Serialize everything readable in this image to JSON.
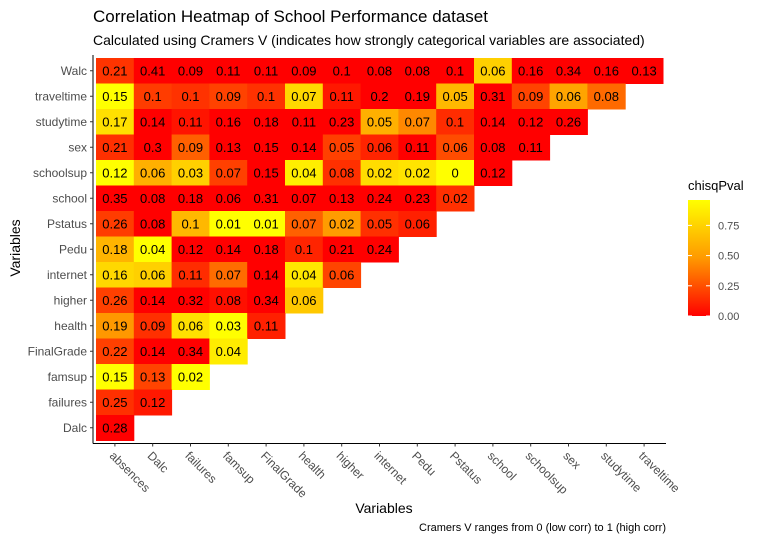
{
  "chart_data": {
    "type": "heatmap",
    "title": "Correlation Heatmap of School Performance dataset",
    "subtitle": "Calculated using Cramers V (indicates how strongly categorical variables are associated)",
    "xlabel": "Variables",
    "ylabel": "Variables",
    "caption": "Cramers V ranges from 0 (low corr) to 1 (high corr)",
    "x_categories": [
      "absences",
      "Dalc",
      "failures",
      "famsup",
      "FinalGrade",
      "health",
      "higher",
      "internet",
      "Pedu",
      "Pstatus",
      "school",
      "schoolsup",
      "sex",
      "studytime",
      "traveltime"
    ],
    "y_categories": [
      "Walc",
      "traveltime",
      "studytime",
      "sex",
      "schoolsup",
      "school",
      "Pstatus",
      "Pedu",
      "internet",
      "higher",
      "health",
      "FinalGrade",
      "famsup",
      "failures",
      "Dalc"
    ],
    "cells": [
      {
        "x": "absences",
        "y": "Walc",
        "label": "0.21",
        "fill": "#ff3400"
      },
      {
        "x": "Dalc",
        "y": "Walc",
        "label": "0.41",
        "fill": "#ff0000"
      },
      {
        "x": "failures",
        "y": "Walc",
        "label": "0.09",
        "fill": "#ff0000"
      },
      {
        "x": "famsup",
        "y": "Walc",
        "label": "0.11",
        "fill": "#ff0000"
      },
      {
        "x": "FinalGrade",
        "y": "Walc",
        "label": "0.11",
        "fill": "#ff0000"
      },
      {
        "x": "health",
        "y": "Walc",
        "label": "0.09",
        "fill": "#ff0000"
      },
      {
        "x": "higher",
        "y": "Walc",
        "label": "0.1",
        "fill": "#ff0000"
      },
      {
        "x": "internet",
        "y": "Walc",
        "label": "0.08",
        "fill": "#ff0000"
      },
      {
        "x": "Pedu",
        "y": "Walc",
        "label": "0.08",
        "fill": "#ff0000"
      },
      {
        "x": "Pstatus",
        "y": "Walc",
        "label": "0.1",
        "fill": "#ff0000"
      },
      {
        "x": "school",
        "y": "Walc",
        "label": "0.06",
        "fill": "#ffd000"
      },
      {
        "x": "schoolsup",
        "y": "Walc",
        "label": "0.16",
        "fill": "#ff0000"
      },
      {
        "x": "sex",
        "y": "Walc",
        "label": "0.34",
        "fill": "#ff0000"
      },
      {
        "x": "studytime",
        "y": "Walc",
        "label": "0.16",
        "fill": "#ff0000"
      },
      {
        "x": "traveltime",
        "y": "Walc",
        "label": "0.13",
        "fill": "#ff0000"
      },
      {
        "x": "absences",
        "y": "traveltime",
        "label": "0.15",
        "fill": "#ffff00"
      },
      {
        "x": "Dalc",
        "y": "traveltime",
        "label": "0.1",
        "fill": "#ff3c00"
      },
      {
        "x": "failures",
        "y": "traveltime",
        "label": "0.1",
        "fill": "#ff3200"
      },
      {
        "x": "famsup",
        "y": "traveltime",
        "label": "0.09",
        "fill": "#ff4200"
      },
      {
        "x": "FinalGrade",
        "y": "traveltime",
        "label": "0.1",
        "fill": "#ff3200"
      },
      {
        "x": "health",
        "y": "traveltime",
        "label": "0.07",
        "fill": "#ffd800"
      },
      {
        "x": "higher",
        "y": "traveltime",
        "label": "0.11",
        "fill": "#ff1800"
      },
      {
        "x": "internet",
        "y": "traveltime",
        "label": "0.2",
        "fill": "#ff0000"
      },
      {
        "x": "Pedu",
        "y": "traveltime",
        "label": "0.19",
        "fill": "#ff0000"
      },
      {
        "x": "Pstatus",
        "y": "traveltime",
        "label": "0.05",
        "fill": "#ffb800"
      },
      {
        "x": "school",
        "y": "traveltime",
        "label": "0.31",
        "fill": "#ff0000"
      },
      {
        "x": "schoolsup",
        "y": "traveltime",
        "label": "0.09",
        "fill": "#ff4400"
      },
      {
        "x": "sex",
        "y": "traveltime",
        "label": "0.06",
        "fill": "#ffa400"
      },
      {
        "x": "studytime",
        "y": "traveltime",
        "label": "0.08",
        "fill": "#ff6a00"
      },
      {
        "x": "absences",
        "y": "studytime",
        "label": "0.17",
        "fill": "#ffe000"
      },
      {
        "x": "Dalc",
        "y": "studytime",
        "label": "0.14",
        "fill": "#ff0000"
      },
      {
        "x": "failures",
        "y": "studytime",
        "label": "0.11",
        "fill": "#ff1400"
      },
      {
        "x": "famsup",
        "y": "studytime",
        "label": "0.16",
        "fill": "#ff0000"
      },
      {
        "x": "FinalGrade",
        "y": "studytime",
        "label": "0.18",
        "fill": "#ff0000"
      },
      {
        "x": "health",
        "y": "studytime",
        "label": "0.11",
        "fill": "#ff0000"
      },
      {
        "x": "higher",
        "y": "studytime",
        "label": "0.23",
        "fill": "#ff0000"
      },
      {
        "x": "internet",
        "y": "studytime",
        "label": "0.05",
        "fill": "#ffb000"
      },
      {
        "x": "Pedu",
        "y": "studytime",
        "label": "0.07",
        "fill": "#ff8800"
      },
      {
        "x": "Pstatus",
        "y": "studytime",
        "label": "0.1",
        "fill": "#ff2c00"
      },
      {
        "x": "school",
        "y": "studytime",
        "label": "0.14",
        "fill": "#ff0000"
      },
      {
        "x": "schoolsup",
        "y": "studytime",
        "label": "0.12",
        "fill": "#ff0000"
      },
      {
        "x": "sex",
        "y": "studytime",
        "label": "0.26",
        "fill": "#ff0000"
      },
      {
        "x": "absences",
        "y": "sex",
        "label": "0.21",
        "fill": "#ff3000"
      },
      {
        "x": "Dalc",
        "y": "sex",
        "label": "0.3",
        "fill": "#ff0000"
      },
      {
        "x": "failures",
        "y": "sex",
        "label": "0.09",
        "fill": "#ff6000"
      },
      {
        "x": "famsup",
        "y": "sex",
        "label": "0.13",
        "fill": "#ff0000"
      },
      {
        "x": "FinalGrade",
        "y": "sex",
        "label": "0.15",
        "fill": "#ff0000"
      },
      {
        "x": "health",
        "y": "sex",
        "label": "0.14",
        "fill": "#ff0000"
      },
      {
        "x": "higher",
        "y": "sex",
        "label": "0.05",
        "fill": "#ff4000"
      },
      {
        "x": "internet",
        "y": "sex",
        "label": "0.06",
        "fill": "#ff2400"
      },
      {
        "x": "Pedu",
        "y": "sex",
        "label": "0.11",
        "fill": "#ff0000"
      },
      {
        "x": "Pstatus",
        "y": "sex",
        "label": "0.06",
        "fill": "#ff4c00"
      },
      {
        "x": "school",
        "y": "sex",
        "label": "0.08",
        "fill": "#ff0000"
      },
      {
        "x": "schoolsup",
        "y": "sex",
        "label": "0.11",
        "fill": "#ff0000"
      },
      {
        "x": "absences",
        "y": "schoolsup",
        "label": "0.12",
        "fill": "#ffff00"
      },
      {
        "x": "Dalc",
        "y": "schoolsup",
        "label": "0.06",
        "fill": "#ffb000"
      },
      {
        "x": "failures",
        "y": "schoolsup",
        "label": "0.03",
        "fill": "#ffd000"
      },
      {
        "x": "famsup",
        "y": "schoolsup",
        "label": "0.07",
        "fill": "#ff4000"
      },
      {
        "x": "FinalGrade",
        "y": "schoolsup",
        "label": "0.15",
        "fill": "#ff0000"
      },
      {
        "x": "health",
        "y": "schoolsup",
        "label": "0.04",
        "fill": "#ffee00"
      },
      {
        "x": "higher",
        "y": "schoolsup",
        "label": "0.08",
        "fill": "#ff3000"
      },
      {
        "x": "internet",
        "y": "schoolsup",
        "label": "0.02",
        "fill": "#ffdc00"
      },
      {
        "x": "Pedu",
        "y": "schoolsup",
        "label": "0.02",
        "fill": "#ffe400"
      },
      {
        "x": "Pstatus",
        "y": "schoolsup",
        "label": "0",
        "fill": "#ffff00"
      },
      {
        "x": "school",
        "y": "schoolsup",
        "label": "0.12",
        "fill": "#ff0000"
      },
      {
        "x": "absences",
        "y": "school",
        "label": "0.35",
        "fill": "#ff0000"
      },
      {
        "x": "Dalc",
        "y": "school",
        "label": "0.08",
        "fill": "#ff0000"
      },
      {
        "x": "failures",
        "y": "school",
        "label": "0.18",
        "fill": "#ff0000"
      },
      {
        "x": "famsup",
        "y": "school",
        "label": "0.06",
        "fill": "#ff0000"
      },
      {
        "x": "FinalGrade",
        "y": "school",
        "label": "0.31",
        "fill": "#ff0000"
      },
      {
        "x": "health",
        "y": "school",
        "label": "0.07",
        "fill": "#ff0000"
      },
      {
        "x": "higher",
        "y": "school",
        "label": "0.13",
        "fill": "#ff0000"
      },
      {
        "x": "internet",
        "y": "school",
        "label": "0.24",
        "fill": "#ff0000"
      },
      {
        "x": "Pedu",
        "y": "school",
        "label": "0.23",
        "fill": "#ff0000"
      },
      {
        "x": "Pstatus",
        "y": "school",
        "label": "0.02",
        "fill": "#ff3000"
      },
      {
        "x": "absences",
        "y": "Pstatus",
        "label": "0.26",
        "fill": "#ff3c00"
      },
      {
        "x": "Dalc",
        "y": "Pstatus",
        "label": "0.08",
        "fill": "#ff0000"
      },
      {
        "x": "failures",
        "y": "Pstatus",
        "label": "0.1",
        "fill": "#ffb800"
      },
      {
        "x": "famsup",
        "y": "Pstatus",
        "label": "0.01",
        "fill": "#ffff00"
      },
      {
        "x": "FinalGrade",
        "y": "Pstatus",
        "label": "0.01",
        "fill": "#ffff00"
      },
      {
        "x": "health",
        "y": "Pstatus",
        "label": "0.07",
        "fill": "#ff6000"
      },
      {
        "x": "higher",
        "y": "Pstatus",
        "label": "0.02",
        "fill": "#ff9c00"
      },
      {
        "x": "internet",
        "y": "Pstatus",
        "label": "0.05",
        "fill": "#ff3000"
      },
      {
        "x": "Pedu",
        "y": "Pstatus",
        "label": "0.06",
        "fill": "#ff2000"
      },
      {
        "x": "absences",
        "y": "Pedu",
        "label": "0.18",
        "fill": "#ffb400"
      },
      {
        "x": "Dalc",
        "y": "Pedu",
        "label": "0.04",
        "fill": "#ffff00"
      },
      {
        "x": "failures",
        "y": "Pedu",
        "label": "0.12",
        "fill": "#ff0000"
      },
      {
        "x": "famsup",
        "y": "Pedu",
        "label": "0.14",
        "fill": "#ff0000"
      },
      {
        "x": "FinalGrade",
        "y": "Pedu",
        "label": "0.18",
        "fill": "#ff0000"
      },
      {
        "x": "health",
        "y": "Pedu",
        "label": "0.1",
        "fill": "#ff2400"
      },
      {
        "x": "higher",
        "y": "Pedu",
        "label": "0.21",
        "fill": "#ff0000"
      },
      {
        "x": "internet",
        "y": "Pedu",
        "label": "0.24",
        "fill": "#ff0000"
      },
      {
        "x": "absences",
        "y": "internet",
        "label": "0.16",
        "fill": "#ffd800"
      },
      {
        "x": "Dalc",
        "y": "internet",
        "label": "0.06",
        "fill": "#ffd000"
      },
      {
        "x": "failures",
        "y": "internet",
        "label": "0.11",
        "fill": "#ff2c00"
      },
      {
        "x": "famsup",
        "y": "internet",
        "label": "0.07",
        "fill": "#ff6c00"
      },
      {
        "x": "FinalGrade",
        "y": "internet",
        "label": "0.14",
        "fill": "#ff0000"
      },
      {
        "x": "health",
        "y": "internet",
        "label": "0.04",
        "fill": "#ffe800"
      },
      {
        "x": "higher",
        "y": "internet",
        "label": "0.06",
        "fill": "#ff4400"
      },
      {
        "x": "absences",
        "y": "higher",
        "label": "0.26",
        "fill": "#ff4000"
      },
      {
        "x": "Dalc",
        "y": "higher",
        "label": "0.14",
        "fill": "#ff0000"
      },
      {
        "x": "failures",
        "y": "higher",
        "label": "0.32",
        "fill": "#ff0000"
      },
      {
        "x": "famsup",
        "y": "higher",
        "label": "0.08",
        "fill": "#ff1000"
      },
      {
        "x": "FinalGrade",
        "y": "higher",
        "label": "0.34",
        "fill": "#ff0000"
      },
      {
        "x": "health",
        "y": "higher",
        "label": "0.06",
        "fill": "#ffc800"
      },
      {
        "x": "absences",
        "y": "health",
        "label": "0.19",
        "fill": "#ff9800"
      },
      {
        "x": "Dalc",
        "y": "health",
        "label": "0.09",
        "fill": "#ff3000"
      },
      {
        "x": "failures",
        "y": "health",
        "label": "0.06",
        "fill": "#ffe000"
      },
      {
        "x": "famsup",
        "y": "health",
        "label": "0.03",
        "fill": "#ffff00"
      },
      {
        "x": "FinalGrade",
        "y": "health",
        "label": "0.11",
        "fill": "#ff2000"
      },
      {
        "x": "absences",
        "y": "FinalGrade",
        "label": "0.22",
        "fill": "#ff4000"
      },
      {
        "x": "Dalc",
        "y": "FinalGrade",
        "label": "0.14",
        "fill": "#ff0000"
      },
      {
        "x": "failures",
        "y": "FinalGrade",
        "label": "0.34",
        "fill": "#ff0000"
      },
      {
        "x": "famsup",
        "y": "FinalGrade",
        "label": "0.04",
        "fill": "#ffec00"
      },
      {
        "x": "absences",
        "y": "famsup",
        "label": "0.15",
        "fill": "#ffff00"
      },
      {
        "x": "Dalc",
        "y": "famsup",
        "label": "0.13",
        "fill": "#ff4400"
      },
      {
        "x": "failures",
        "y": "famsup",
        "label": "0.02",
        "fill": "#ffff00"
      },
      {
        "x": "absences",
        "y": "failures",
        "label": "0.25",
        "fill": "#ff3000"
      },
      {
        "x": "Dalc",
        "y": "failures",
        "label": "0.12",
        "fill": "#ff1800"
      },
      {
        "x": "absences",
        "y": "Dalc",
        "label": "0.28",
        "fill": "#ff0000"
      }
    ],
    "legend": {
      "title": "chisqPval",
      "ticks": [
        0.0,
        0.25,
        0.5,
        0.75
      ],
      "tick_labels": [
        "0.00",
        "0.25",
        "0.50",
        "0.75"
      ],
      "range": [
        0,
        0.96
      ],
      "colors": [
        "#ff0000",
        "#ffff00"
      ],
      "placement": "right"
    },
    "grid": false
  }
}
